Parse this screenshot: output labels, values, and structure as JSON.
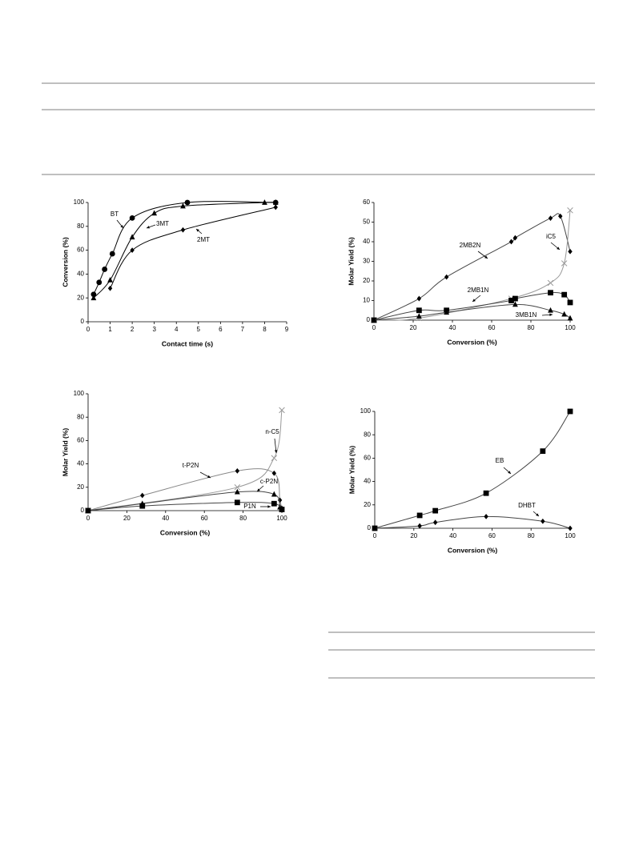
{
  "chart_data": [
    {
      "type": "scatter",
      "xlabel": "Contact time (s)",
      "ylabel": "Conversion (%)",
      "xlim": [
        0,
        9
      ],
      "xticks": [
        0,
        1,
        2,
        3,
        4,
        5,
        6,
        7,
        8,
        9
      ],
      "ylim": [
        0,
        100
      ],
      "yticks": [
        0,
        20,
        40,
        60,
        80,
        100
      ],
      "series": [
        {
          "name": "BT",
          "color": "#000000",
          "marker": "circle",
          "x": [
            0.25,
            0.5,
            0.75,
            1.1,
            2,
            4.5,
            8.5
          ],
          "values": [
            23,
            33,
            44,
            57,
            87,
            100,
            100
          ]
        },
        {
          "name": "3MT",
          "color": "#000000",
          "marker": "triangle",
          "x": [
            0.25,
            1,
            2,
            3,
            4.3,
            8,
            8.5
          ],
          "values": [
            20,
            35,
            71,
            91,
            97,
            100,
            100
          ]
        },
        {
          "name": "2MT",
          "color": "#000000",
          "marker": "diamond",
          "x": [
            1,
            2,
            4.3,
            8.5
          ],
          "values": [
            28,
            60,
            77,
            96
          ]
        }
      ]
    },
    {
      "type": "scatter",
      "xlabel": "Conversion (%)",
      "ylabel": "Molar Yield (%)",
      "xlim": [
        0,
        100
      ],
      "xticks": [
        0,
        20,
        40,
        60,
        80,
        100
      ],
      "ylim": [
        0,
        60
      ],
      "yticks": [
        0,
        10,
        20,
        30,
        40,
        50,
        60
      ],
      "series": [
        {
          "name": "2MB2N",
          "color": "#444444",
          "marker": "diamond",
          "x": [
            0,
            23,
            37,
            70,
            72,
            90,
            95,
            100
          ],
          "values": [
            0,
            11,
            22,
            40,
            42,
            52,
            53,
            35
          ]
        },
        {
          "name": "iC5",
          "color": "#999999",
          "marker": "x",
          "x": [
            0,
            23,
            70,
            90,
            97,
            100
          ],
          "values": [
            0,
            1,
            11,
            19,
            29,
            56
          ]
        },
        {
          "name": "2MB1N",
          "color": "#444444",
          "marker": "square",
          "x": [
            0,
            23,
            37,
            70,
            72,
            90,
            97,
            100
          ],
          "values": [
            0,
            5,
            5,
            10,
            11,
            14,
            13,
            9
          ]
        },
        {
          "name": "3MB1N",
          "color": "#444444",
          "marker": "triangle",
          "x": [
            0,
            23,
            37,
            72,
            90,
            97,
            100
          ],
          "values": [
            0,
            2,
            4,
            8,
            5,
            3,
            1
          ]
        }
      ]
    },
    {
      "type": "scatter",
      "xlabel": "Conversion (%)",
      "ylabel": "Molar Yield (%)",
      "xlim": [
        0,
        100
      ],
      "xticks": [
        0,
        20,
        40,
        60,
        80,
        100
      ],
      "ylim": [
        0,
        100
      ],
      "yticks": [
        0,
        20,
        40,
        60,
        80,
        100
      ],
      "series": [
        {
          "name": "n-C5",
          "color": "#999999",
          "marker": "x",
          "x": [
            0,
            77,
            96,
            100
          ],
          "values": [
            0,
            20,
            45,
            86
          ]
        },
        {
          "name": "t-P2N",
          "color": "#888888",
          "marker": "diamond",
          "x": [
            0,
            28,
            77,
            96,
            99,
            100
          ],
          "values": [
            0,
            13,
            34,
            32,
            9,
            2
          ]
        },
        {
          "name": "c-P2N",
          "color": "#444444",
          "marker": "triangle",
          "x": [
            0,
            28,
            77,
            96,
            99
          ],
          "values": [
            0,
            6,
            16,
            14,
            3
          ]
        },
        {
          "name": "P1N",
          "color": "#444444",
          "marker": "square",
          "x": [
            0,
            28,
            77,
            96,
            100
          ],
          "values": [
            0,
            4,
            7,
            6,
            1
          ]
        }
      ]
    },
    {
      "type": "scatter",
      "xlabel": "Conversion (%)",
      "ylabel": "Molar Yield (%)",
      "xlim": [
        0,
        100
      ],
      "xticks": [
        0,
        20,
        40,
        60,
        80,
        100
      ],
      "ylim": [
        0,
        100
      ],
      "yticks": [
        0,
        20,
        40,
        60,
        80,
        100
      ],
      "series": [
        {
          "name": "EB",
          "color": "#444444",
          "marker": "square",
          "x": [
            0,
            23,
            31,
            57,
            86,
            100
          ],
          "values": [
            0,
            11,
            15,
            30,
            66,
            100
          ]
        },
        {
          "name": "DHBT",
          "color": "#444444",
          "marker": "diamond",
          "x": [
            0,
            23,
            31,
            57,
            86,
            100
          ],
          "values": [
            0,
            2,
            5,
            10,
            6,
            0
          ]
        }
      ]
    }
  ]
}
